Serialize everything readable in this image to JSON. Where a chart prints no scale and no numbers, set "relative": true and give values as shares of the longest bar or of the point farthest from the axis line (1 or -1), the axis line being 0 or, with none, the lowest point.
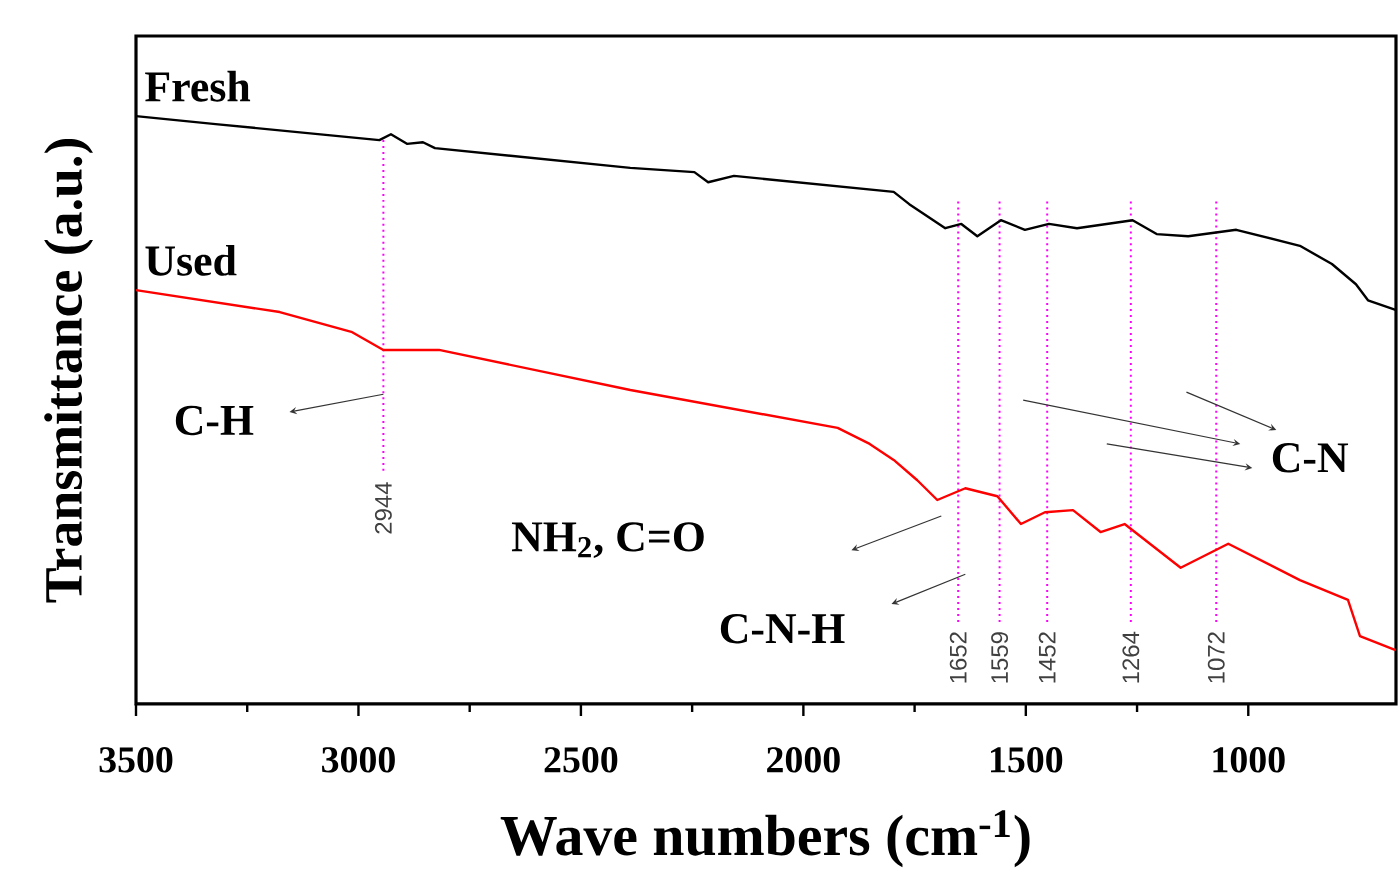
{
  "chart_data": {
    "type": "line",
    "relative": true,
    "xlabel": "Wave numbers (cm$^{-1}$)",
    "ylabel": "Transmittance (a.u.)",
    "xlim": [
      3500,
      668
    ],
    "xticks": [
      3500,
      3000,
      2500,
      2000,
      1500,
      1000
    ],
    "tick_labels": "x",
    "grid": false,
    "marker": "none",
    "line_style": "solid",
    "series": [
      {
        "name": "Fresh",
        "color": "#000000",
        "x": [
          3500,
          3321,
          2953,
          2927,
          2891,
          2855,
          2828,
          2389,
          2245,
          2214,
          2156,
          1797,
          1762,
          1681,
          1645,
          1609,
          1556,
          1502,
          1448,
          1385,
          1260,
          1206,
          1135,
          1027,
          884,
          812,
          758,
          731,
          669
        ],
        "values": [
          1.0,
          0.985,
          0.955,
          0.966,
          0.948,
          0.951,
          0.94,
          0.903,
          0.895,
          0.876,
          0.888,
          0.858,
          0.835,
          0.79,
          0.798,
          0.775,
          0.805,
          0.787,
          0.798,
          0.79,
          0.805,
          0.779,
          0.775,
          0.787,
          0.757,
          0.723,
          0.685,
          0.655,
          0.637
        ]
      },
      {
        "name": "Used",
        "color": "#ff0000",
        "x": [
          3500,
          3177,
          3016,
          2944,
          2819,
          2389,
          1923,
          1851,
          1797,
          1744,
          1699,
          1636,
          1564,
          1511,
          1457,
          1394,
          1332,
          1278,
          1152,
          1045,
          884,
          776,
          749,
          669
        ],
        "values": [
          0.674,
          0.633,
          0.596,
          0.562,
          0.562,
          0.487,
          0.416,
          0.386,
          0.356,
          0.318,
          0.281,
          0.303,
          0.288,
          0.236,
          0.258,
          0.262,
          0.221,
          0.236,
          0.154,
          0.199,
          0.131,
          0.094,
          0.026,
          0.0
        ]
      }
    ],
    "ref_lines": [
      {
        "axis": "x",
        "value": 2944,
        "label": "2944",
        "color": "#ff00ff",
        "line_style": "dotted"
      },
      {
        "axis": "x",
        "value": 1652,
        "label": "1652",
        "color": "#ff00ff",
        "line_style": "dotted"
      },
      {
        "axis": "x",
        "value": 1559,
        "label": "1559",
        "color": "#ff00ff",
        "line_style": "dotted"
      },
      {
        "axis": "x",
        "value": 1452,
        "label": "1452",
        "color": "#ff00ff",
        "line_style": "dotted"
      },
      {
        "axis": "x",
        "value": 1264,
        "label": "1264",
        "color": "#ff00ff",
        "line_style": "dotted"
      },
      {
        "axis": "x",
        "value": 1072,
        "label": "1072",
        "color": "#ff00ff",
        "line_style": "dotted"
      }
    ],
    "annotations": [
      "C-H",
      "NH$_{2}$, C=O",
      "C-N-H",
      "C-N"
    ]
  }
}
